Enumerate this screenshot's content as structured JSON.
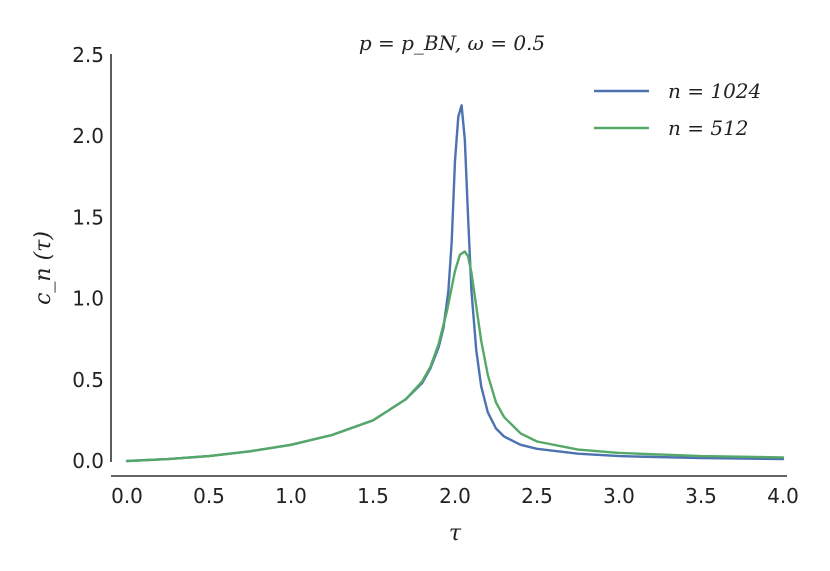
{
  "chart_data": {
    "type": "line",
    "title": "p = p_BN, ω = 0.5",
    "xlabel": "τ",
    "ylabel": "c_n (τ)",
    "xlim": [
      0.0,
      4.0
    ],
    "ylim": [
      0.0,
      2.5
    ],
    "grid": false,
    "legend_position": "top-right",
    "x_ticks": [
      "0.0",
      "0.5",
      "1.0",
      "1.5",
      "2.0",
      "2.5",
      "3.0",
      "3.5",
      "4.0"
    ],
    "y_ticks": [
      "0.0",
      "0.5",
      "1.0",
      "1.5",
      "2.0",
      "2.5"
    ],
    "series": [
      {
        "name": "n = 1024",
        "color": "#4c72b0",
        "x": [
          0.0,
          0.25,
          0.5,
          0.75,
          1.0,
          1.25,
          1.5,
          1.7,
          1.8,
          1.85,
          1.9,
          1.93,
          1.96,
          1.98,
          2.0,
          2.02,
          2.04,
          2.06,
          2.08,
          2.1,
          2.13,
          2.16,
          2.2,
          2.25,
          2.3,
          2.4,
          2.5,
          2.75,
          3.0,
          3.5,
          4.0
        ],
        "values": [
          0.0,
          0.012,
          0.03,
          0.06,
          0.1,
          0.16,
          0.25,
          0.38,
          0.48,
          0.57,
          0.7,
          0.82,
          1.05,
          1.35,
          1.85,
          2.12,
          2.19,
          1.98,
          1.5,
          1.05,
          0.68,
          0.46,
          0.3,
          0.2,
          0.15,
          0.1,
          0.075,
          0.045,
          0.03,
          0.018,
          0.012
        ]
      },
      {
        "name": "n = 512",
        "color": "#55a868",
        "x": [
          0.0,
          0.25,
          0.5,
          0.75,
          1.0,
          1.25,
          1.5,
          1.7,
          1.8,
          1.85,
          1.9,
          1.95,
          2.0,
          2.03,
          2.06,
          2.08,
          2.1,
          2.13,
          2.16,
          2.2,
          2.25,
          2.3,
          2.4,
          2.5,
          2.75,
          3.0,
          3.5,
          4.0
        ],
        "values": [
          0.0,
          0.012,
          0.03,
          0.06,
          0.1,
          0.16,
          0.25,
          0.38,
          0.49,
          0.58,
          0.72,
          0.92,
          1.17,
          1.27,
          1.29,
          1.26,
          1.16,
          0.95,
          0.74,
          0.53,
          0.36,
          0.27,
          0.17,
          0.12,
          0.07,
          0.05,
          0.03,
          0.022
        ]
      }
    ]
  }
}
